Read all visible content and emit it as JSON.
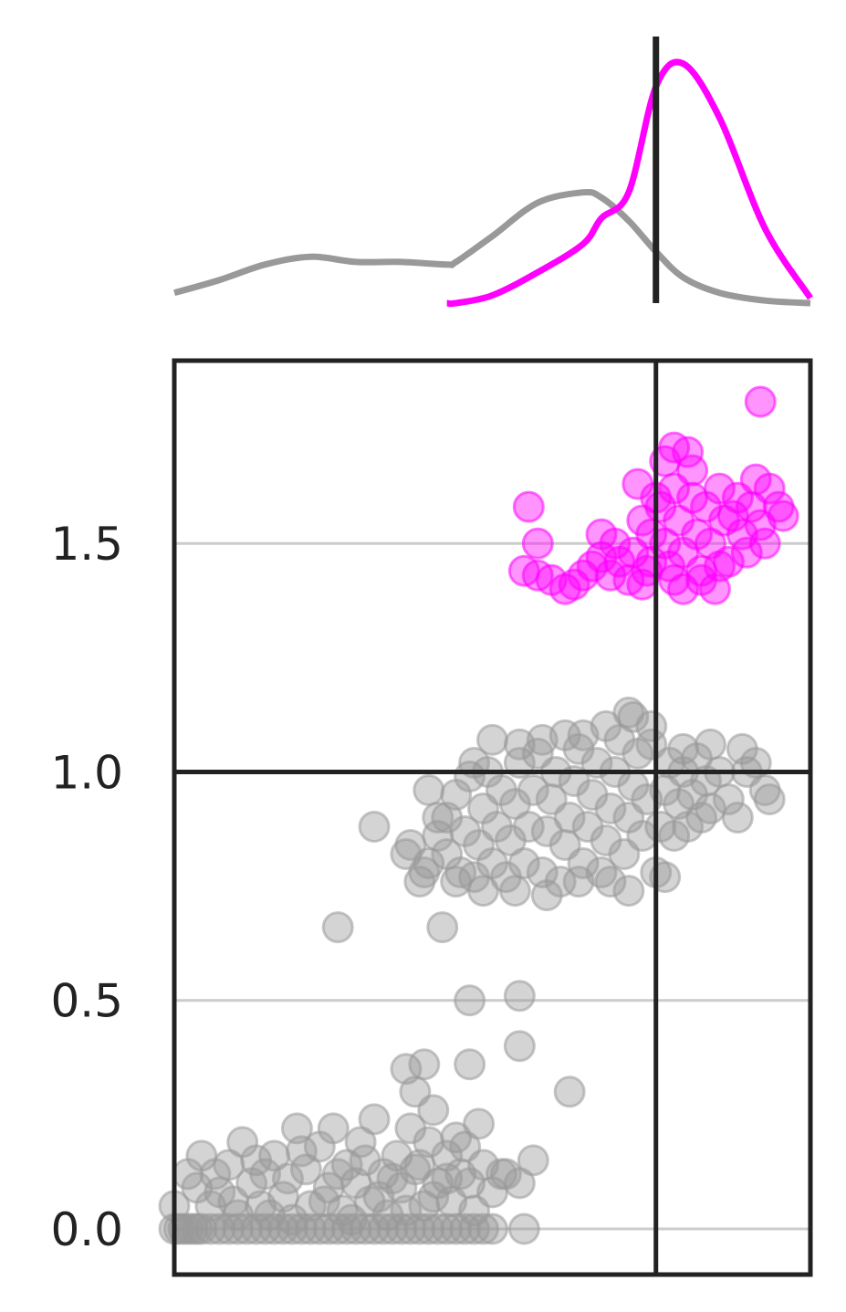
{
  "chart_data": {
    "type": "scatter",
    "title": "",
    "xlabel": "",
    "ylabel": "",
    "xlim": [
      0,
      1.4
    ],
    "ylim": [
      -0.1,
      1.9
    ],
    "yticks": [
      0.0,
      0.5,
      1.0,
      1.5
    ],
    "ytick_labels": [
      "0.0",
      "0.5",
      "1.0",
      "1.5"
    ],
    "grid": "horizontal",
    "reference_lines": {
      "x": 1.06,
      "y": 1.0
    },
    "colors": {
      "grey_group": "#999999",
      "magenta_group": "#ff00ff",
      "axes": "#222222",
      "grid": "#cccccc"
    },
    "marginal_density": {
      "type": "line",
      "x": [
        0.0,
        0.1,
        0.2,
        0.3,
        0.4,
        0.5,
        0.6,
        0.62,
        0.7,
        0.8,
        0.9,
        0.94,
        1.0,
        1.06,
        1.12,
        1.2,
        1.3,
        1.4
      ],
      "series": [
        {
          "color": "#999999",
          "values": [
            0.04,
            0.09,
            0.15,
            0.18,
            0.16,
            0.16,
            0.15,
            0.16,
            0.26,
            0.39,
            0.43,
            0.41,
            0.32,
            0.2,
            0.1,
            0.04,
            0.01,
            0.0
          ]
        },
        {
          "color": "#ff00ff",
          "values": [
            null,
            null,
            null,
            null,
            null,
            null,
            0.0,
            0.0,
            0.03,
            0.12,
            0.23,
            0.33,
            0.43,
            0.84,
            0.93,
            0.72,
            0.29,
            0.02
          ]
        }
      ]
    },
    "series": [
      {
        "color": "#999999",
        "points": [
          [
            0.0,
            0.0
          ],
          [
            0.01,
            0.0
          ],
          [
            0.02,
            0.0
          ],
          [
            0.03,
            0.0
          ],
          [
            0.04,
            0.0
          ],
          [
            0.05,
            0.0
          ],
          [
            0.06,
            0.0
          ],
          [
            0.08,
            0.0
          ],
          [
            0.1,
            0.0
          ],
          [
            0.12,
            0.0
          ],
          [
            0.14,
            0.0
          ],
          [
            0.16,
            0.0
          ],
          [
            0.18,
            0.0
          ],
          [
            0.2,
            0.0
          ],
          [
            0.22,
            0.0
          ],
          [
            0.24,
            0.0
          ],
          [
            0.26,
            0.0
          ],
          [
            0.28,
            0.0
          ],
          [
            0.3,
            0.0
          ],
          [
            0.32,
            0.0
          ],
          [
            0.34,
            0.0
          ],
          [
            0.36,
            0.0
          ],
          [
            0.38,
            0.0
          ],
          [
            0.4,
            0.0
          ],
          [
            0.42,
            0.0
          ],
          [
            0.44,
            0.0
          ],
          [
            0.46,
            0.0
          ],
          [
            0.48,
            0.0
          ],
          [
            0.5,
            0.0
          ],
          [
            0.52,
            0.0
          ],
          [
            0.54,
            0.0
          ],
          [
            0.56,
            0.0
          ],
          [
            0.58,
            0.0
          ],
          [
            0.6,
            0.0
          ],
          [
            0.62,
            0.0
          ],
          [
            0.64,
            0.0
          ],
          [
            0.66,
            0.0
          ],
          [
            0.68,
            0.0
          ],
          [
            0.7,
            0.0
          ],
          [
            0.0,
            0.05
          ],
          [
            0.03,
            0.12
          ],
          [
            0.06,
            0.16
          ],
          [
            0.08,
            0.05
          ],
          [
            0.1,
            0.08
          ],
          [
            0.12,
            0.14
          ],
          [
            0.14,
            0.03
          ],
          [
            0.15,
            0.19
          ],
          [
            0.17,
            0.1
          ],
          [
            0.19,
            0.05
          ],
          [
            0.2,
            0.12
          ],
          [
            0.22,
            0.16
          ],
          [
            0.24,
            0.07
          ],
          [
            0.26,
            0.02
          ],
          [
            0.27,
            0.22
          ],
          [
            0.29,
            0.13
          ],
          [
            0.3,
            0.05
          ],
          [
            0.32,
            0.18
          ],
          [
            0.34,
            0.09
          ],
          [
            0.35,
            0.22
          ],
          [
            0.37,
            0.04
          ],
          [
            0.38,
            0.14
          ],
          [
            0.4,
            0.1
          ],
          [
            0.41,
            0.19
          ],
          [
            0.43,
            0.06
          ],
          [
            0.44,
            0.24
          ],
          [
            0.46,
            0.12
          ],
          [
            0.47,
            0.03
          ],
          [
            0.49,
            0.16
          ],
          [
            0.5,
            0.09
          ],
          [
            0.52,
            0.22
          ],
          [
            0.53,
            0.13
          ],
          [
            0.55,
            0.05
          ],
          [
            0.56,
            0.19
          ],
          [
            0.58,
            0.1
          ],
          [
            0.6,
            0.16
          ],
          [
            0.61,
            0.06
          ],
          [
            0.63,
            0.12
          ],
          [
            0.64,
            0.18
          ],
          [
            0.66,
            0.04
          ],
          [
            0.05,
            0.09
          ],
          [
            0.09,
            0.12
          ],
          [
            0.13,
            0.06
          ],
          [
            0.18,
            0.15
          ],
          [
            0.21,
            0.03
          ],
          [
            0.25,
            0.11
          ],
          [
            0.28,
            0.17
          ],
          [
            0.33,
            0.06
          ],
          [
            0.36,
            0.12
          ],
          [
            0.39,
            0.02
          ],
          [
            0.42,
            0.15
          ],
          [
            0.45,
            0.07
          ],
          [
            0.48,
            0.11
          ],
          [
            0.51,
            0.04
          ],
          [
            0.54,
            0.14
          ],
          [
            0.57,
            0.07
          ],
          [
            0.6,
            0.11
          ],
          [
            0.62,
            0.2
          ],
          [
            0.65,
            0.1
          ],
          [
            0.68,
            0.14
          ],
          [
            0.7,
            0.08
          ],
          [
            0.72,
            0.12
          ],
          [
            0.67,
            0.23
          ],
          [
            0.57,
            0.26
          ],
          [
            0.53,
            0.3
          ],
          [
            0.51,
            0.35
          ],
          [
            0.55,
            0.36
          ],
          [
            0.65,
            0.36
          ],
          [
            0.73,
            0.12
          ],
          [
            0.76,
            0.1
          ],
          [
            0.79,
            0.15
          ],
          [
            0.77,
            0.0
          ],
          [
            0.87,
            0.3
          ],
          [
            0.76,
            0.4
          ],
          [
            0.65,
            0.5
          ],
          [
            0.76,
            0.51
          ],
          [
            0.36,
            0.66
          ],
          [
            0.59,
            0.66
          ],
          [
            0.44,
            0.88
          ],
          [
            0.51,
            0.82
          ],
          [
            0.54,
            0.76
          ],
          [
            0.56,
            0.8
          ],
          [
            0.58,
            0.86
          ],
          [
            0.6,
            0.9
          ],
          [
            0.6,
            0.82
          ],
          [
            0.62,
            0.95
          ],
          [
            0.63,
            0.78
          ],
          [
            0.64,
            0.87
          ],
          [
            0.65,
            0.99
          ],
          [
            0.66,
            0.77
          ],
          [
            0.67,
            0.84
          ],
          [
            0.68,
            0.92
          ],
          [
            0.69,
            1.0
          ],
          [
            0.7,
            0.8
          ],
          [
            0.71,
            0.88
          ],
          [
            0.72,
            0.96
          ],
          [
            0.73,
            0.77
          ],
          [
            0.74,
            0.85
          ],
          [
            0.75,
            0.93
          ],
          [
            0.76,
            1.02
          ],
          [
            0.77,
            0.8
          ],
          [
            0.78,
            0.88
          ],
          [
            0.79,
            0.96
          ],
          [
            0.8,
            1.04
          ],
          [
            0.81,
            0.78
          ],
          [
            0.82,
            0.87
          ],
          [
            0.83,
            0.94
          ],
          [
            0.84,
            1.0
          ],
          [
            0.85,
            0.76
          ],
          [
            0.86,
            0.84
          ],
          [
            0.87,
            0.9
          ],
          [
            0.88,
            0.98
          ],
          [
            0.89,
            1.05
          ],
          [
            0.9,
            0.8
          ],
          [
            0.91,
            0.88
          ],
          [
            0.92,
            0.95
          ],
          [
            0.93,
            1.02
          ],
          [
            0.94,
            0.78
          ],
          [
            0.95,
            0.85
          ],
          [
            0.96,
            0.92
          ],
          [
            0.97,
            1.0
          ],
          [
            0.98,
            1.07
          ],
          [
            0.99,
            0.82
          ],
          [
            1.0,
            0.9
          ],
          [
            1.01,
            0.97
          ],
          [
            1.02,
            1.04
          ],
          [
            1.03,
            0.86
          ],
          [
            1.04,
            0.94
          ],
          [
            1.05,
            1.1
          ],
          [
            1.06,
            0.78
          ],
          [
            1.07,
            0.88
          ],
          [
            1.08,
            0.96
          ],
          [
            1.09,
            1.02
          ],
          [
            1.1,
            0.86
          ],
          [
            1.11,
            0.93
          ],
          [
            1.12,
            1.0
          ],
          [
            1.13,
            0.88
          ],
          [
            1.14,
            0.95
          ],
          [
            1.15,
            1.03
          ],
          [
            1.16,
            0.9
          ],
          [
            1.17,
            0.98
          ],
          [
            1.18,
            0.92
          ],
          [
            1.2,
            1.0
          ],
          [
            1.22,
            0.94
          ],
          [
            1.24,
            0.9
          ],
          [
            1.26,
            1.0
          ],
          [
            1.28,
            1.02
          ],
          [
            1.3,
            0.96
          ],
          [
            1.31,
            0.94
          ],
          [
            0.81,
            1.07
          ],
          [
            0.9,
            1.08
          ],
          [
            1.0,
            1.13
          ],
          [
            1.01,
            1.12
          ],
          [
            0.7,
            1.07
          ],
          [
            0.56,
            0.96
          ],
          [
            0.58,
            0.9
          ],
          [
            0.52,
            0.84
          ],
          [
            0.55,
            0.78
          ],
          [
            0.62,
            0.76
          ],
          [
            0.68,
            0.74
          ],
          [
            0.75,
            0.74
          ],
          [
            0.82,
            0.73
          ],
          [
            0.89,
            0.76
          ],
          [
            0.96,
            0.76
          ],
          [
            1.0,
            0.74
          ],
          [
            1.08,
            0.77
          ],
          [
            0.66,
            1.02
          ],
          [
            0.76,
            1.06
          ],
          [
            0.86,
            1.08
          ],
          [
            0.95,
            1.1
          ],
          [
            1.05,
            1.06
          ],
          [
            1.12,
            1.05
          ],
          [
            1.18,
            1.06
          ],
          [
            1.25,
            1.05
          ]
        ]
      },
      {
        "color": "#ff00ff",
        "points": [
          [
            0.78,
            1.58
          ],
          [
            0.8,
            1.5
          ],
          [
            0.77,
            1.44
          ],
          [
            0.8,
            1.43
          ],
          [
            0.83,
            1.42
          ],
          [
            0.86,
            1.4
          ],
          [
            0.88,
            1.41
          ],
          [
            0.9,
            1.43
          ],
          [
            0.92,
            1.45
          ],
          [
            0.94,
            1.52
          ],
          [
            0.94,
            1.47
          ],
          [
            0.96,
            1.43
          ],
          [
            0.98,
            1.46
          ],
          [
            1.0,
            1.42
          ],
          [
            1.01,
            1.48
          ],
          [
            1.02,
            1.63
          ],
          [
            1.03,
            1.55
          ],
          [
            1.04,
            1.44
          ],
          [
            1.05,
            1.52
          ],
          [
            1.06,
            1.6
          ],
          [
            1.07,
            1.58
          ],
          [
            1.08,
            1.68
          ],
          [
            1.08,
            1.5
          ],
          [
            1.09,
            1.45
          ],
          [
            1.1,
            1.71
          ],
          [
            1.1,
            1.62
          ],
          [
            1.11,
            1.55
          ],
          [
            1.12,
            1.48
          ],
          [
            1.12,
            1.4
          ],
          [
            1.13,
            1.7
          ],
          [
            1.14,
            1.6
          ],
          [
            1.15,
            1.52
          ],
          [
            1.16,
            1.44
          ],
          [
            1.17,
            1.58
          ],
          [
            1.18,
            1.5
          ],
          [
            1.19,
            1.4
          ],
          [
            1.2,
            1.62
          ],
          [
            1.21,
            1.55
          ],
          [
            1.22,
            1.46
          ],
          [
            1.23,
            1.56
          ],
          [
            1.24,
            1.6
          ],
          [
            1.25,
            1.52
          ],
          [
            1.26,
            1.48
          ],
          [
            1.27,
            1.58
          ],
          [
            1.28,
            1.64
          ],
          [
            1.29,
            1.54
          ],
          [
            1.3,
            1.5
          ],
          [
            1.31,
            1.62
          ],
          [
            1.33,
            1.58
          ],
          [
            1.34,
            1.56
          ],
          [
            1.29,
            1.81
          ],
          [
            1.05,
            1.46
          ],
          [
            1.1,
            1.42
          ],
          [
            1.16,
            1.42
          ],
          [
            0.97,
            1.5
          ],
          [
            1.03,
            1.41
          ],
          [
            1.14,
            1.66
          ],
          [
            1.2,
            1.45
          ]
        ]
      }
    ]
  }
}
